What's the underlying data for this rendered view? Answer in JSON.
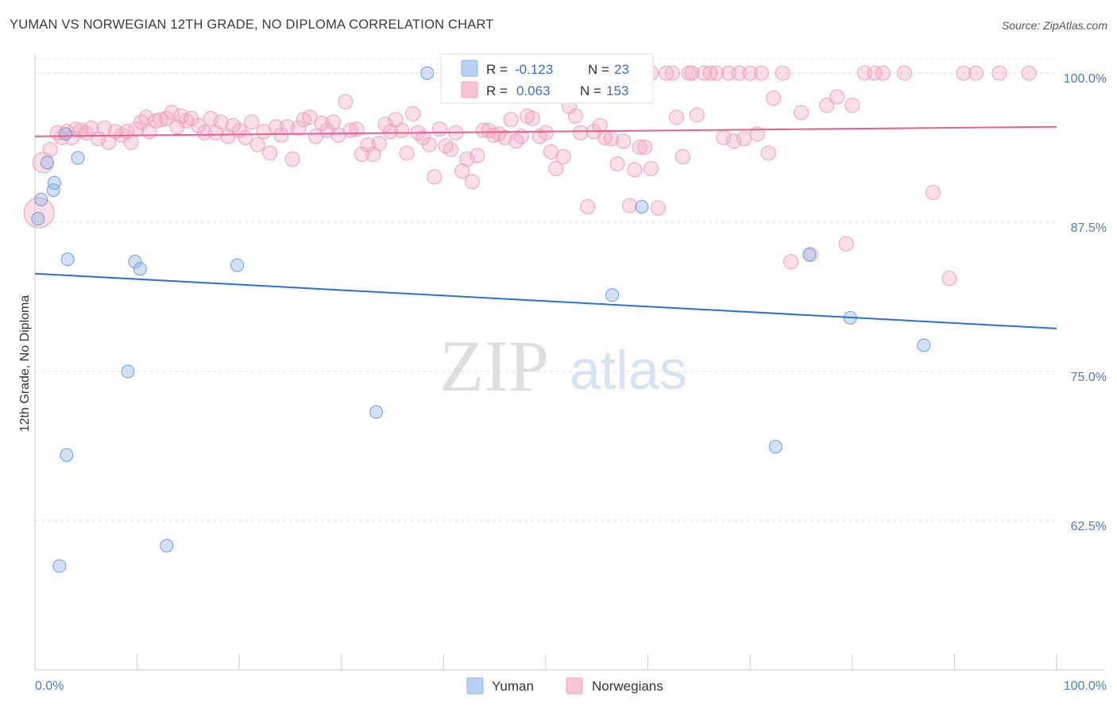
{
  "title": "YUMAN VS NORWEGIAN 12TH GRADE, NO DIPLOMA CORRELATION CHART",
  "source": "Source: ZipAtlas.com",
  "watermark": {
    "zip": "ZIP",
    "atlas": "atlas"
  },
  "colors": {
    "yuman": "#8fb4e8",
    "yuman_line": "#2f6fcf",
    "norwegians": "#f2a4bd",
    "norwegians_line": "#e4628b",
    "axis_label": "#4a7cc7"
  },
  "stats_legend": [
    {
      "r_label": "R = ",
      "r_value": "-0.123",
      "n_label": "N = ",
      "n_value": "23"
    },
    {
      "r_label": "R = ",
      "r_value": "0.063",
      "n_label": "N = ",
      "n_value": "153"
    }
  ],
  "bottom_legend": [
    "Yuman",
    "Norwegians"
  ],
  "chart_data": {
    "type": "scatter",
    "title": "YUMAN VS NORWEGIAN 12TH GRADE, NO DIPLOMA CORRELATION CHART",
    "xlabel": "",
    "ylabel": "12th Grade, No Diploma",
    "xlim": [
      0,
      100
    ],
    "ylim": [
      50,
      102
    ],
    "x_tick_labels": [
      "0.0%",
      "100.0%"
    ],
    "y_ticks": [
      62.5,
      75.0,
      87.5,
      100.0
    ],
    "y_tick_labels": [
      "62.5%",
      "75.0%",
      "87.5%",
      "100.0%"
    ],
    "grid": true,
    "legend_position": "bottom-center",
    "series": [
      {
        "name": "Yuman",
        "trend": {
          "x": [
            0,
            100
          ],
          "y": [
            83.2,
            78.6
          ]
        },
        "points": [
          [
            0.3,
            87.8
          ],
          [
            0.6,
            89.4
          ],
          [
            1.2,
            92.5
          ],
          [
            1.8,
            90.2
          ],
          [
            1.9,
            90.8
          ],
          [
            3.0,
            94.9
          ],
          [
            4.2,
            92.9
          ],
          [
            3.2,
            84.4
          ],
          [
            9.8,
            84.2
          ],
          [
            10.3,
            83.6
          ],
          [
            19.8,
            83.9
          ],
          [
            9.1,
            75.0
          ],
          [
            3.1,
            68.0
          ],
          [
            2.4,
            58.7
          ],
          [
            12.9,
            60.4
          ],
          [
            33.4,
            71.6
          ],
          [
            38.4,
            100.0
          ],
          [
            56.5,
            81.4
          ],
          [
            59.4,
            88.8
          ],
          [
            72.5,
            68.7
          ],
          [
            75.8,
            84.8
          ],
          [
            79.8,
            79.5
          ],
          [
            87.0,
            77.2
          ]
        ]
      },
      {
        "name": "Norwegians",
        "trend": {
          "x": [
            0,
            100
          ],
          "y": [
            94.7,
            95.5
          ]
        },
        "points": [
          [
            0.4,
            88.3
          ],
          [
            0.8,
            92.5
          ],
          [
            1.5,
            93.6
          ],
          [
            2.2,
            95.0
          ],
          [
            2.6,
            94.6
          ],
          [
            3.1,
            95.1
          ],
          [
            3.6,
            94.6
          ],
          [
            4.0,
            95.3
          ],
          [
            4.5,
            95.2
          ],
          [
            5.0,
            95.0
          ],
          [
            5.5,
            95.4
          ],
          [
            6.2,
            94.5
          ],
          [
            6.8,
            95.4
          ],
          [
            7.2,
            94.2
          ],
          [
            7.9,
            95.1
          ],
          [
            8.5,
            94.8
          ],
          [
            9.0,
            95.1
          ],
          [
            9.4,
            94.2
          ],
          [
            9.9,
            95.3
          ],
          [
            10.4,
            95.9
          ],
          [
            10.9,
            96.3
          ],
          [
            11.2,
            95.1
          ],
          [
            11.8,
            96.0
          ],
          [
            12.3,
            96.1
          ],
          [
            12.9,
            96.2
          ],
          [
            13.4,
            96.7
          ],
          [
            13.9,
            95.5
          ],
          [
            14.3,
            96.4
          ],
          [
            14.8,
            96.0
          ],
          [
            15.3,
            96.2
          ],
          [
            16.0,
            95.6
          ],
          [
            16.6,
            95.0
          ],
          [
            17.2,
            96.2
          ],
          [
            17.7,
            95.0
          ],
          [
            18.2,
            95.9
          ],
          [
            18.9,
            94.7
          ],
          [
            19.4,
            95.6
          ],
          [
            20.0,
            95.2
          ],
          [
            20.6,
            94.6
          ],
          [
            21.2,
            95.9
          ],
          [
            21.8,
            94.0
          ],
          [
            22.4,
            95.1
          ],
          [
            23.0,
            93.3
          ],
          [
            23.6,
            95.5
          ],
          [
            24.1,
            94.8
          ],
          [
            24.7,
            95.5
          ],
          [
            25.2,
            92.8
          ],
          [
            25.8,
            95.4
          ],
          [
            26.3,
            96.1
          ],
          [
            26.9,
            96.3
          ],
          [
            27.5,
            94.7
          ],
          [
            28.1,
            95.8
          ],
          [
            28.6,
            95.2
          ],
          [
            29.2,
            95.9
          ],
          [
            29.7,
            94.8
          ],
          [
            30.4,
            97.6
          ],
          [
            30.9,
            95.2
          ],
          [
            31.5,
            95.3
          ],
          [
            32.0,
            93.2
          ],
          [
            32.6,
            94.0
          ],
          [
            33.1,
            93.2
          ],
          [
            33.7,
            94.1
          ],
          [
            34.3,
            95.7
          ],
          [
            34.8,
            95.1
          ],
          [
            35.3,
            96.1
          ],
          [
            35.9,
            95.2
          ],
          [
            36.4,
            93.3
          ],
          [
            37.0,
            96.6
          ],
          [
            37.5,
            95.0
          ],
          [
            38.0,
            94.6
          ],
          [
            38.6,
            94.0
          ],
          [
            39.1,
            91.3
          ],
          [
            39.6,
            95.3
          ],
          [
            40.2,
            93.9
          ],
          [
            40.7,
            93.6
          ],
          [
            41.2,
            95.0
          ],
          [
            41.8,
            91.8
          ],
          [
            42.3,
            92.8
          ],
          [
            42.8,
            90.9
          ],
          [
            43.3,
            93.1
          ],
          [
            43.9,
            95.2
          ],
          [
            44.4,
            95.2
          ],
          [
            44.9,
            94.8
          ],
          [
            45.4,
            94.9
          ],
          [
            46.0,
            94.6
          ],
          [
            46.6,
            96.1
          ],
          [
            47.1,
            94.3
          ],
          [
            47.6,
            94.7
          ],
          [
            48.2,
            96.4
          ],
          [
            48.7,
            96.2
          ],
          [
            49.4,
            94.7
          ],
          [
            50.0,
            95.0
          ],
          [
            50.5,
            93.4
          ],
          [
            51.0,
            92.0
          ],
          [
            51.7,
            93.0
          ],
          [
            52.3,
            97.2
          ],
          [
            52.9,
            96.4
          ],
          [
            53.4,
            95.0
          ],
          [
            54.1,
            88.8
          ],
          [
            54.7,
            95.1
          ],
          [
            55.3,
            95.6
          ],
          [
            55.8,
            94.6
          ],
          [
            56.4,
            94.5
          ],
          [
            57.0,
            92.4
          ],
          [
            57.6,
            94.3
          ],
          [
            58.2,
            88.9
          ],
          [
            58.7,
            91.9
          ],
          [
            59.2,
            93.8
          ],
          [
            59.7,
            93.8
          ],
          [
            60.3,
            92.0
          ],
          [
            61.0,
            88.7
          ],
          [
            60.3,
            100.0
          ],
          [
            61.8,
            100.0
          ],
          [
            62.4,
            100.0
          ],
          [
            62.8,
            96.3
          ],
          [
            63.4,
            93.0
          ],
          [
            64.0,
            100.0
          ],
          [
            64.3,
            100.0
          ],
          [
            64.8,
            96.5
          ],
          [
            65.5,
            100.0
          ],
          [
            66.1,
            100.0
          ],
          [
            66.7,
            100.0
          ],
          [
            67.4,
            94.6
          ],
          [
            67.9,
            100.0
          ],
          [
            68.4,
            94.3
          ],
          [
            68.9,
            100.0
          ],
          [
            69.4,
            94.5
          ],
          [
            70.0,
            100.0
          ],
          [
            70.7,
            94.9
          ],
          [
            71.1,
            100.0
          ],
          [
            71.8,
            93.3
          ],
          [
            72.3,
            97.9
          ],
          [
            73.2,
            100.0
          ],
          [
            74.0,
            84.2
          ],
          [
            75.0,
            96.7
          ],
          [
            75.9,
            84.8
          ],
          [
            77.5,
            97.3
          ],
          [
            78.5,
            98.0
          ],
          [
            79.4,
            85.7
          ],
          [
            80.0,
            97.3
          ],
          [
            81.2,
            100.0
          ],
          [
            82.2,
            100.0
          ],
          [
            83.0,
            100.0
          ],
          [
            85.1,
            100.0
          ],
          [
            87.9,
            90.0
          ],
          [
            89.5,
            82.8
          ],
          [
            90.9,
            100.0
          ],
          [
            92.1,
            100.0
          ],
          [
            94.4,
            100.0
          ],
          [
            97.3,
            100.0
          ]
        ]
      }
    ]
  }
}
